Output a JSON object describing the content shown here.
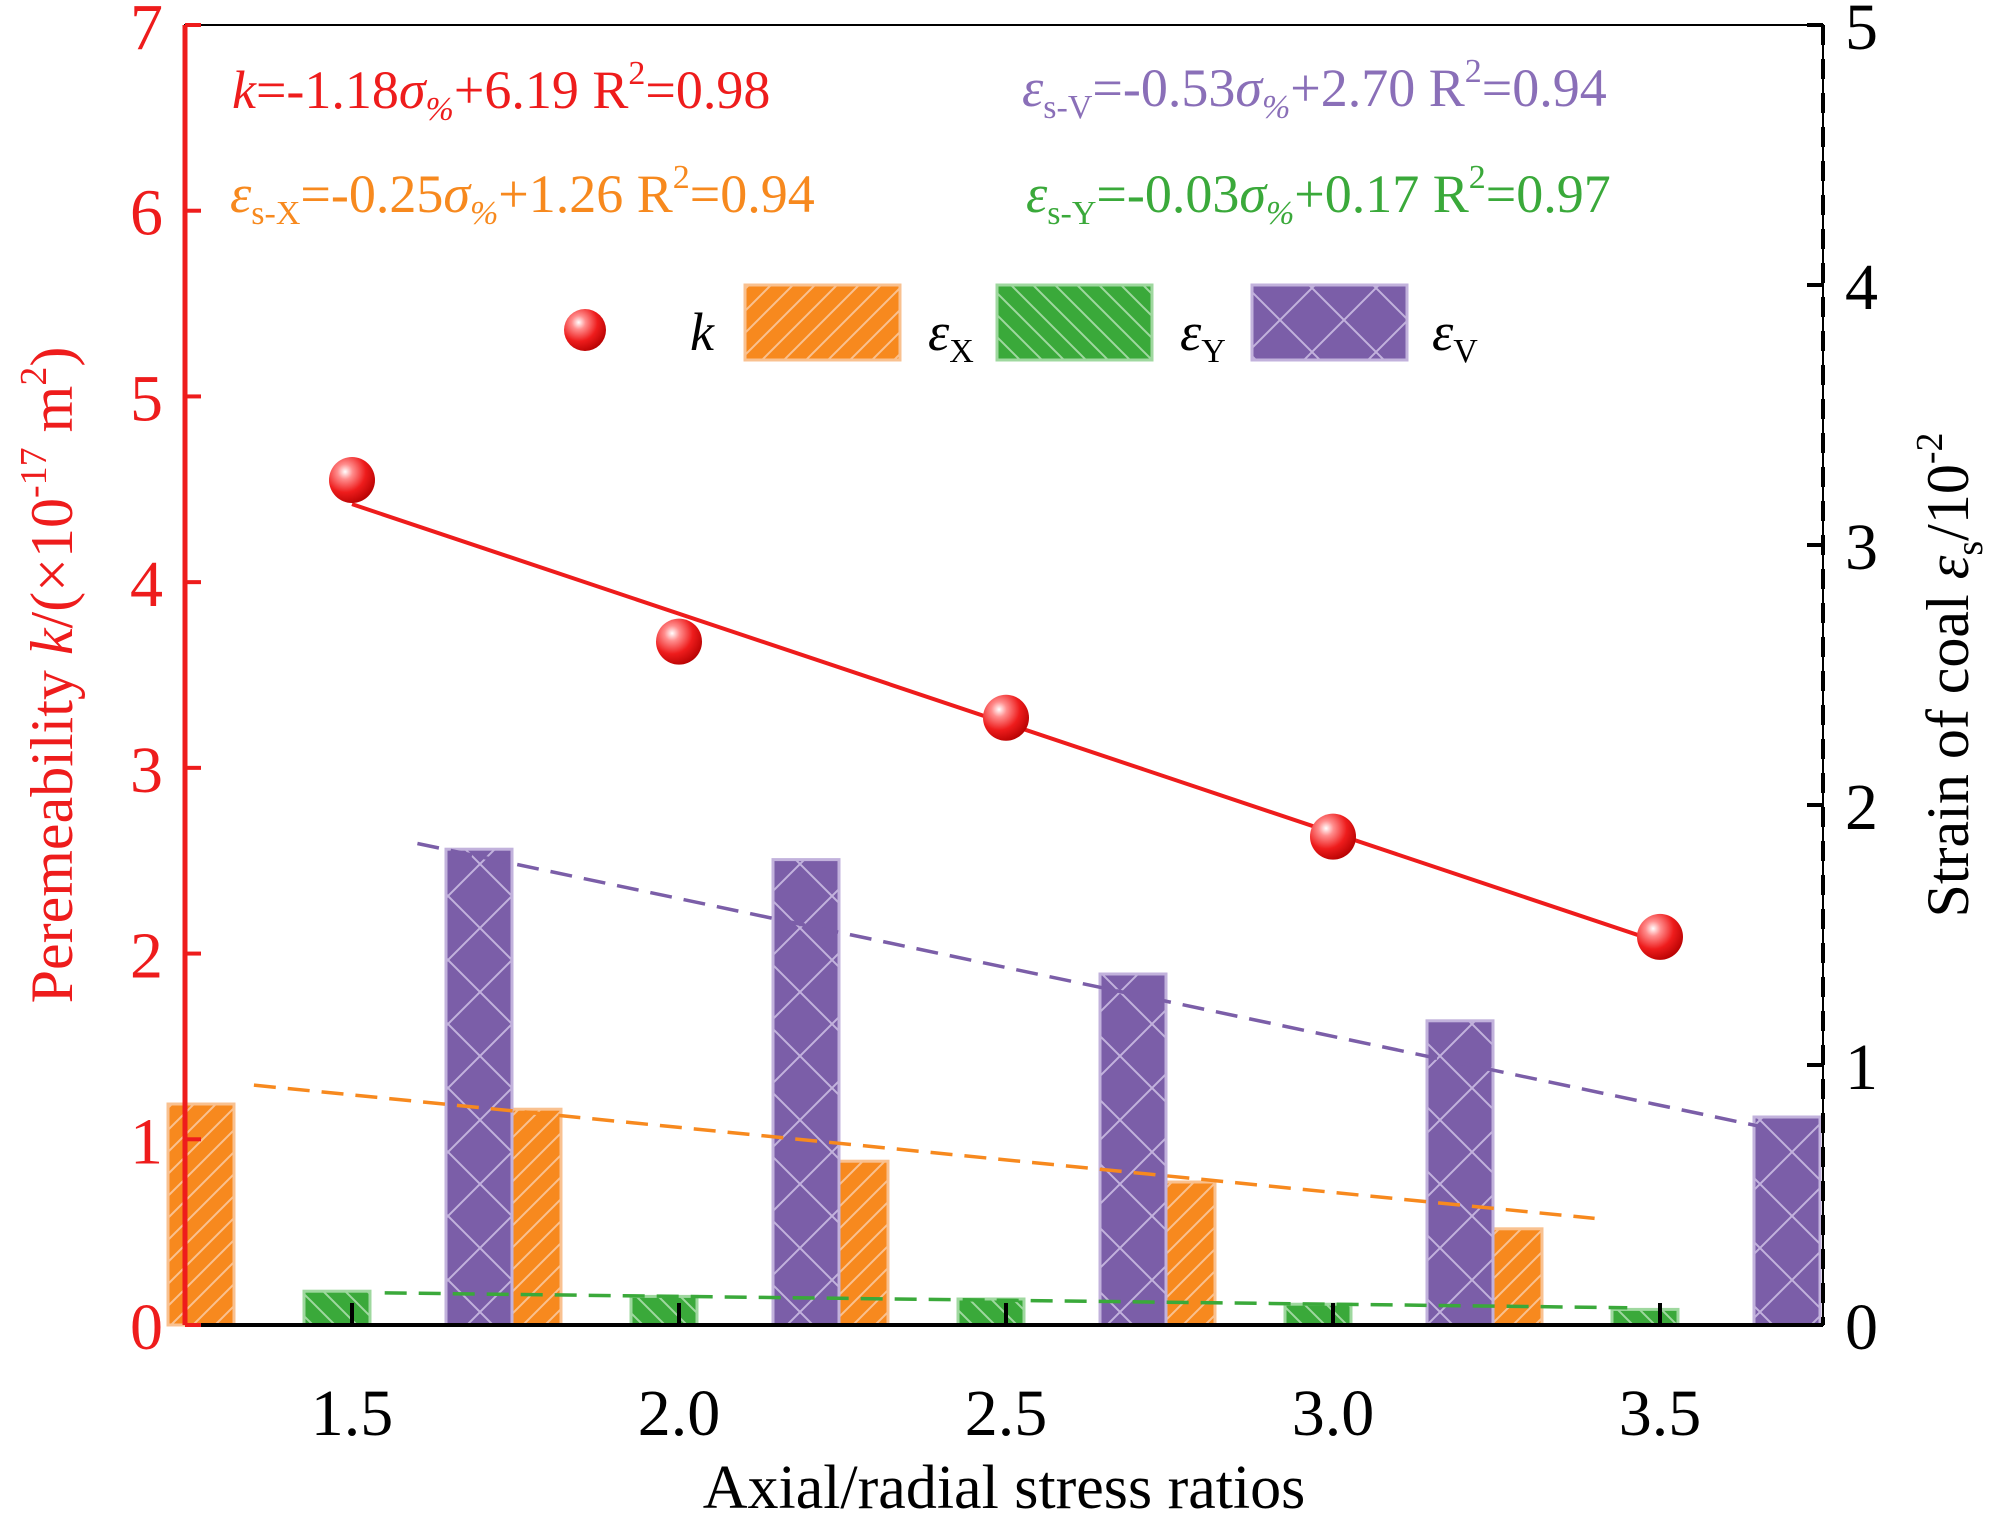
{
  "chart_data": {
    "type": "bar",
    "xlabel": "Axial/radial stress ratios",
    "ylabel_left": {
      "main": "Peremeability ",
      "k": "k",
      "unit_a": "/(×10",
      "exp": "-17",
      "unit_b": " m",
      "exp2": "2",
      "unit_c": ")"
    },
    "ylabel_right": {
      "main": "Strain of coal ",
      "eps": "ε",
      "sub": "s",
      "unit": "/10",
      "exp": "-2"
    },
    "categories": [
      "1.5",
      "2.0",
      "2.5",
      "3.0",
      "3.5"
    ],
    "x_values": [
      1.5,
      2.0,
      2.5,
      3.0,
      3.5
    ],
    "ylim_left": [
      0,
      7
    ],
    "ylim_right": [
      0,
      5
    ],
    "yticks_left": [
      "0",
      "1",
      "2",
      "3",
      "4",
      "5",
      "6",
      "7"
    ],
    "yticks_right": [
      "0",
      "1",
      "2",
      "3",
      "4",
      "5"
    ],
    "permeability_k": [
      4.55,
      3.68,
      3.27,
      2.63,
      2.09
    ],
    "bar_series": [
      {
        "key": "eX",
        "name": "ε",
        "sub": "X",
        "values": [
          0.85,
          0.83,
          0.63,
          0.55,
          0.37
        ],
        "color": "#f7891e",
        "edge": "#f9c190",
        "hatch": "forward"
      },
      {
        "key": "eY",
        "name": "ε",
        "sub": "Y",
        "values": [
          0.13,
          0.11,
          0.1,
          0.08,
          0.06
        ],
        "color": "#3aa93a",
        "edge": "#9fd89f",
        "hatch": "back"
      },
      {
        "key": "eV",
        "name": "ε",
        "sub": "V",
        "values": [
          1.83,
          1.79,
          1.35,
          1.17,
          0.8
        ],
        "color": "#7b5ea8",
        "edge": "#c2b2dc",
        "hatch": "cross"
      }
    ],
    "fits": [
      {
        "key": "k",
        "axis": "left",
        "slope": -1.18,
        "intercept": 6.19,
        "color": "#ee1c1c",
        "style": "solid"
      },
      {
        "key": "eX",
        "axis": "right",
        "slope": -0.25,
        "intercept": 1.26,
        "color": "#f7891e",
        "style": "dashed"
      },
      {
        "key": "eY",
        "axis": "right",
        "slope": -0.03,
        "intercept": 0.17,
        "color": "#3aa93a",
        "style": "dashed"
      },
      {
        "key": "eV",
        "axis": "right",
        "slope": -0.53,
        "intercept": 2.7,
        "color": "#7b5ea8",
        "style": "dashed"
      }
    ],
    "k_color": "#ee1c1c",
    "legend": {
      "k": "k"
    },
    "annotations": [
      {
        "key": "k",
        "var": "k",
        "sub": "",
        "eq": "=-1.18",
        "sig": "σ",
        "pct": "%",
        "tail": "+6.19  R",
        "r2exp": "2",
        "r2": "=0.98",
        "color": "#ee1c1c"
      },
      {
        "key": "eV",
        "var": "ε",
        "sub": "s-V",
        "eq": "=-0.53",
        "sig": "σ",
        "pct": "%",
        "tail": "+2.70  R",
        "r2exp": "2",
        "r2": "=0.94",
        "color": "#8a6fb8"
      },
      {
        "key": "eX",
        "var": "ε",
        "sub": "s-X",
        "eq": "=-0.25",
        "sig": "σ",
        "pct": "%",
        "tail": "+1.26 R",
        "r2exp": "2",
        "r2": "=0.94",
        "color": "#f7891e"
      },
      {
        "key": "eY",
        "var": "ε",
        "sub": "s-Y",
        "eq": "=-0.03",
        "sig": "σ",
        "pct": "%",
        "tail": "+0.17  R",
        "r2exp": "2",
        "r2": "=0.97",
        "color": "#3aa93a"
      }
    ]
  }
}
